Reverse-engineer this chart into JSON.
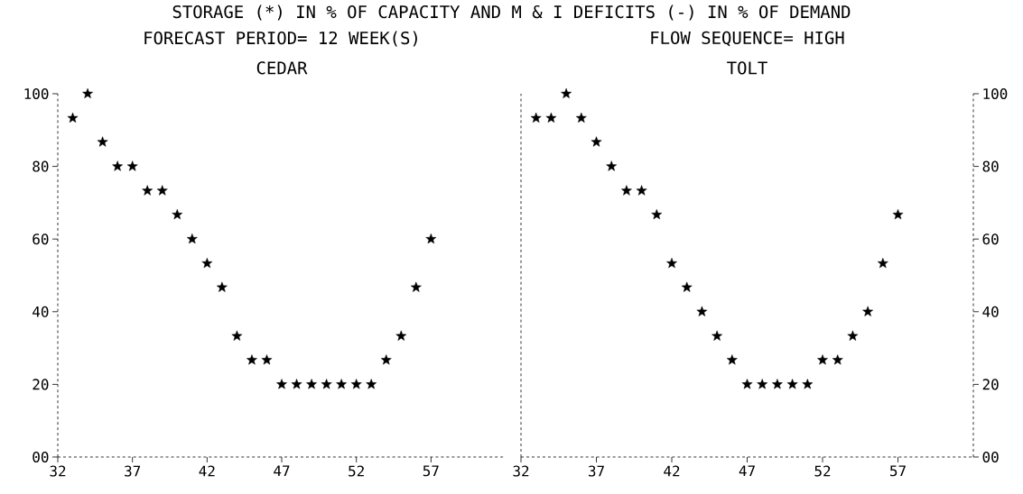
{
  "chart_data": [
    {
      "type": "scatter",
      "title": "CEDAR",
      "annotations": [
        "STORAGE (*) IN % OF CAPACITY AND M & I DEFICITS (-) IN % OF DEMAND",
        "FORECAST PERIOD= 12 WEEK(S)"
      ],
      "x": [
        33,
        34,
        35,
        36,
        37,
        38,
        39,
        40,
        41,
        42,
        43,
        44,
        45,
        46,
        47,
        48,
        49,
        50,
        51,
        52,
        53,
        54,
        55,
        56,
        57
      ],
      "values": [
        93.3,
        100,
        86.7,
        80,
        80,
        73.3,
        73.3,
        66.7,
        60,
        53.3,
        46.7,
        33.3,
        26.7,
        26.7,
        20,
        20,
        20,
        20,
        20,
        20,
        20,
        26.7,
        33.3,
        46.7,
        60
      ],
      "color": "#000000",
      "marker": "star",
      "xlim": [
        32,
        62
      ],
      "ylim": [
        0,
        100
      ],
      "xticks": [
        32,
        37,
        42,
        47,
        52,
        57
      ],
      "yticks": [
        {
          "value": 0,
          "label": "00"
        },
        20,
        40,
        60,
        80,
        100
      ],
      "grid": false
    },
    {
      "type": "scatter",
      "title": "TOLT",
      "annotations": [
        "FLOW SEQUENCE= HIGH"
      ],
      "x": [
        33,
        34,
        35,
        36,
        37,
        38,
        39,
        40,
        41,
        42,
        43,
        44,
        45,
        46,
        47,
        48,
        49,
        50,
        51,
        52,
        53,
        54,
        55,
        56,
        57
      ],
      "values": [
        93.3,
        93.3,
        100,
        93.3,
        86.7,
        80,
        73.3,
        73.3,
        66.7,
        53.3,
        46.7,
        40,
        33.3,
        26.7,
        20,
        20,
        20,
        20,
        20,
        26.7,
        26.7,
        33.3,
        40,
        53.3,
        66.7
      ],
      "color": "#000000",
      "marker": "star",
      "xlim": [
        32,
        62
      ],
      "ylim": [
        0,
        100
      ],
      "xticks": [
        32,
        37,
        42,
        47,
        52,
        57
      ],
      "yticks": [
        {
          "value": 0,
          "label": "00"
        },
        20,
        40,
        60,
        80,
        100
      ],
      "grid": false
    }
  ]
}
